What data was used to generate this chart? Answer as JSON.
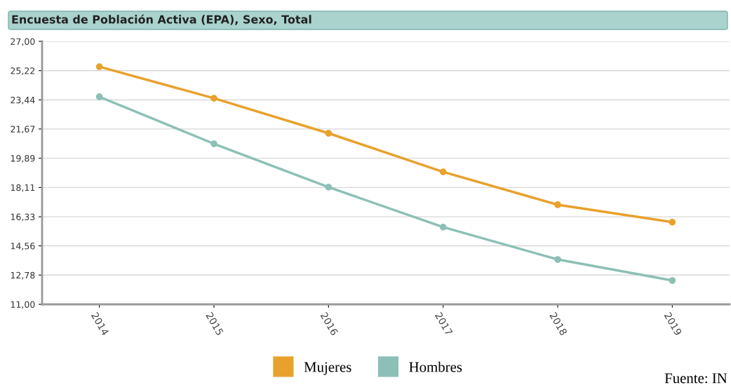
{
  "chart_data": {
    "type": "line",
    "title": "Encuesta de Población Activa (EPA), Sexo, Total",
    "categories": [
      "2014",
      "2015",
      "2016",
      "2017",
      "2018",
      "2019"
    ],
    "series": [
      {
        "name": "Mujeres",
        "color": "#e8a12c",
        "values": [
          25.46,
          23.54,
          21.41,
          19.06,
          17.06,
          16.0
        ]
      },
      {
        "name": "Hombres",
        "color": "#8cc0b6",
        "values": [
          23.63,
          20.77,
          18.13,
          15.7,
          13.73,
          12.45
        ]
      }
    ],
    "ylim": [
      11.0,
      27.0
    ],
    "yticks": [
      {
        "value": 11.0,
        "label": "11,00"
      },
      {
        "value": 12.78,
        "label": "12,78"
      },
      {
        "value": 14.56,
        "label": "14,56"
      },
      {
        "value": 16.33,
        "label": "16,33"
      },
      {
        "value": 18.11,
        "label": "18,11"
      },
      {
        "value": 19.89,
        "label": "19,89"
      },
      {
        "value": 21.67,
        "label": "21,67"
      },
      {
        "value": 23.44,
        "label": "23,44"
      },
      {
        "value": 25.22,
        "label": "25,22"
      },
      {
        "value": 27.0,
        "label": "27,00"
      }
    ],
    "grid": "y",
    "legend": "bottom",
    "marker": "circle",
    "line_style": "solid",
    "annotations": [
      "Fuente: IN"
    ]
  }
}
